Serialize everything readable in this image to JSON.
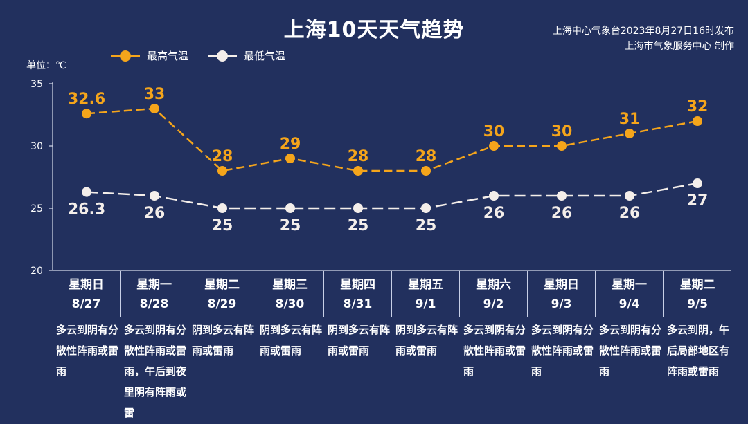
{
  "header": {
    "title": "上海10天天气趋势",
    "issuer_line1": "上海中心气象台2023年8月27日16时发布",
    "issuer_line2": "上海市气象服务中心 制作"
  },
  "unit_label": "单位：℃",
  "colors": {
    "high": "#f5a51b",
    "low": "#f4eeea",
    "background": "#22305e"
  },
  "chart_data": {
    "type": "line",
    "ylim": [
      20,
      35
    ],
    "yticks": [
      20,
      25,
      30,
      35
    ],
    "ylabel": "单位：℃",
    "categories": [
      "8/27",
      "8/28",
      "8/29",
      "8/30",
      "8/31",
      "9/1",
      "9/2",
      "9/3",
      "9/4",
      "9/5"
    ],
    "weekdays": [
      "星期日",
      "星期一",
      "星期二",
      "星期三",
      "星期四",
      "星期五",
      "星期六",
      "星期日",
      "星期一",
      "星期二"
    ],
    "series": [
      {
        "name": "最高气温",
        "values": [
          32.6,
          33,
          28,
          29,
          28,
          28,
          30,
          30,
          31,
          32
        ],
        "labels": [
          "32.6",
          "33",
          "28",
          "29",
          "28",
          "28",
          "30",
          "30",
          "31",
          "32"
        ]
      },
      {
        "name": "最低气温",
        "values": [
          26.3,
          26,
          25,
          25,
          25,
          25,
          26,
          26,
          26,
          27
        ],
        "labels": [
          "26.3",
          "26",
          "25",
          "25",
          "25",
          "25",
          "26",
          "26",
          "26",
          "27"
        ]
      }
    ],
    "legend_position": "top-left",
    "line_style": "dashed"
  },
  "days": [
    {
      "weekday": "星期日",
      "date": "8/27",
      "weather": "多云到阴有分散性阵雨或雷雨"
    },
    {
      "weekday": "星期一",
      "date": "8/28",
      "weather": "多云到阴有分散性阵雨或雷雨，午后到夜里阴有阵雨或雷"
    },
    {
      "weekday": "星期二",
      "date": "8/29",
      "weather": "阴到多云有阵雨或雷雨"
    },
    {
      "weekday": "星期三",
      "date": "8/30",
      "weather": "阴到多云有阵雨或雷雨"
    },
    {
      "weekday": "星期四",
      "date": "8/31",
      "weather": "阴到多云有阵雨或雷雨"
    },
    {
      "weekday": "星期五",
      "date": "9/1",
      "weather": "阴到多云有阵雨或雷雨"
    },
    {
      "weekday": "星期六",
      "date": "9/2",
      "weather": "多云到阴有分散性阵雨或雷雨"
    },
    {
      "weekday": "星期日",
      "date": "9/3",
      "weather": "多云到阴有分散性阵雨或雷雨"
    },
    {
      "weekday": "星期一",
      "date": "9/4",
      "weather": "多云到阴有分散性阵雨或雷雨"
    },
    {
      "weekday": "星期二",
      "date": "9/5",
      "weather": "多云到阴，午后局部地区有阵雨或雷雨"
    }
  ]
}
